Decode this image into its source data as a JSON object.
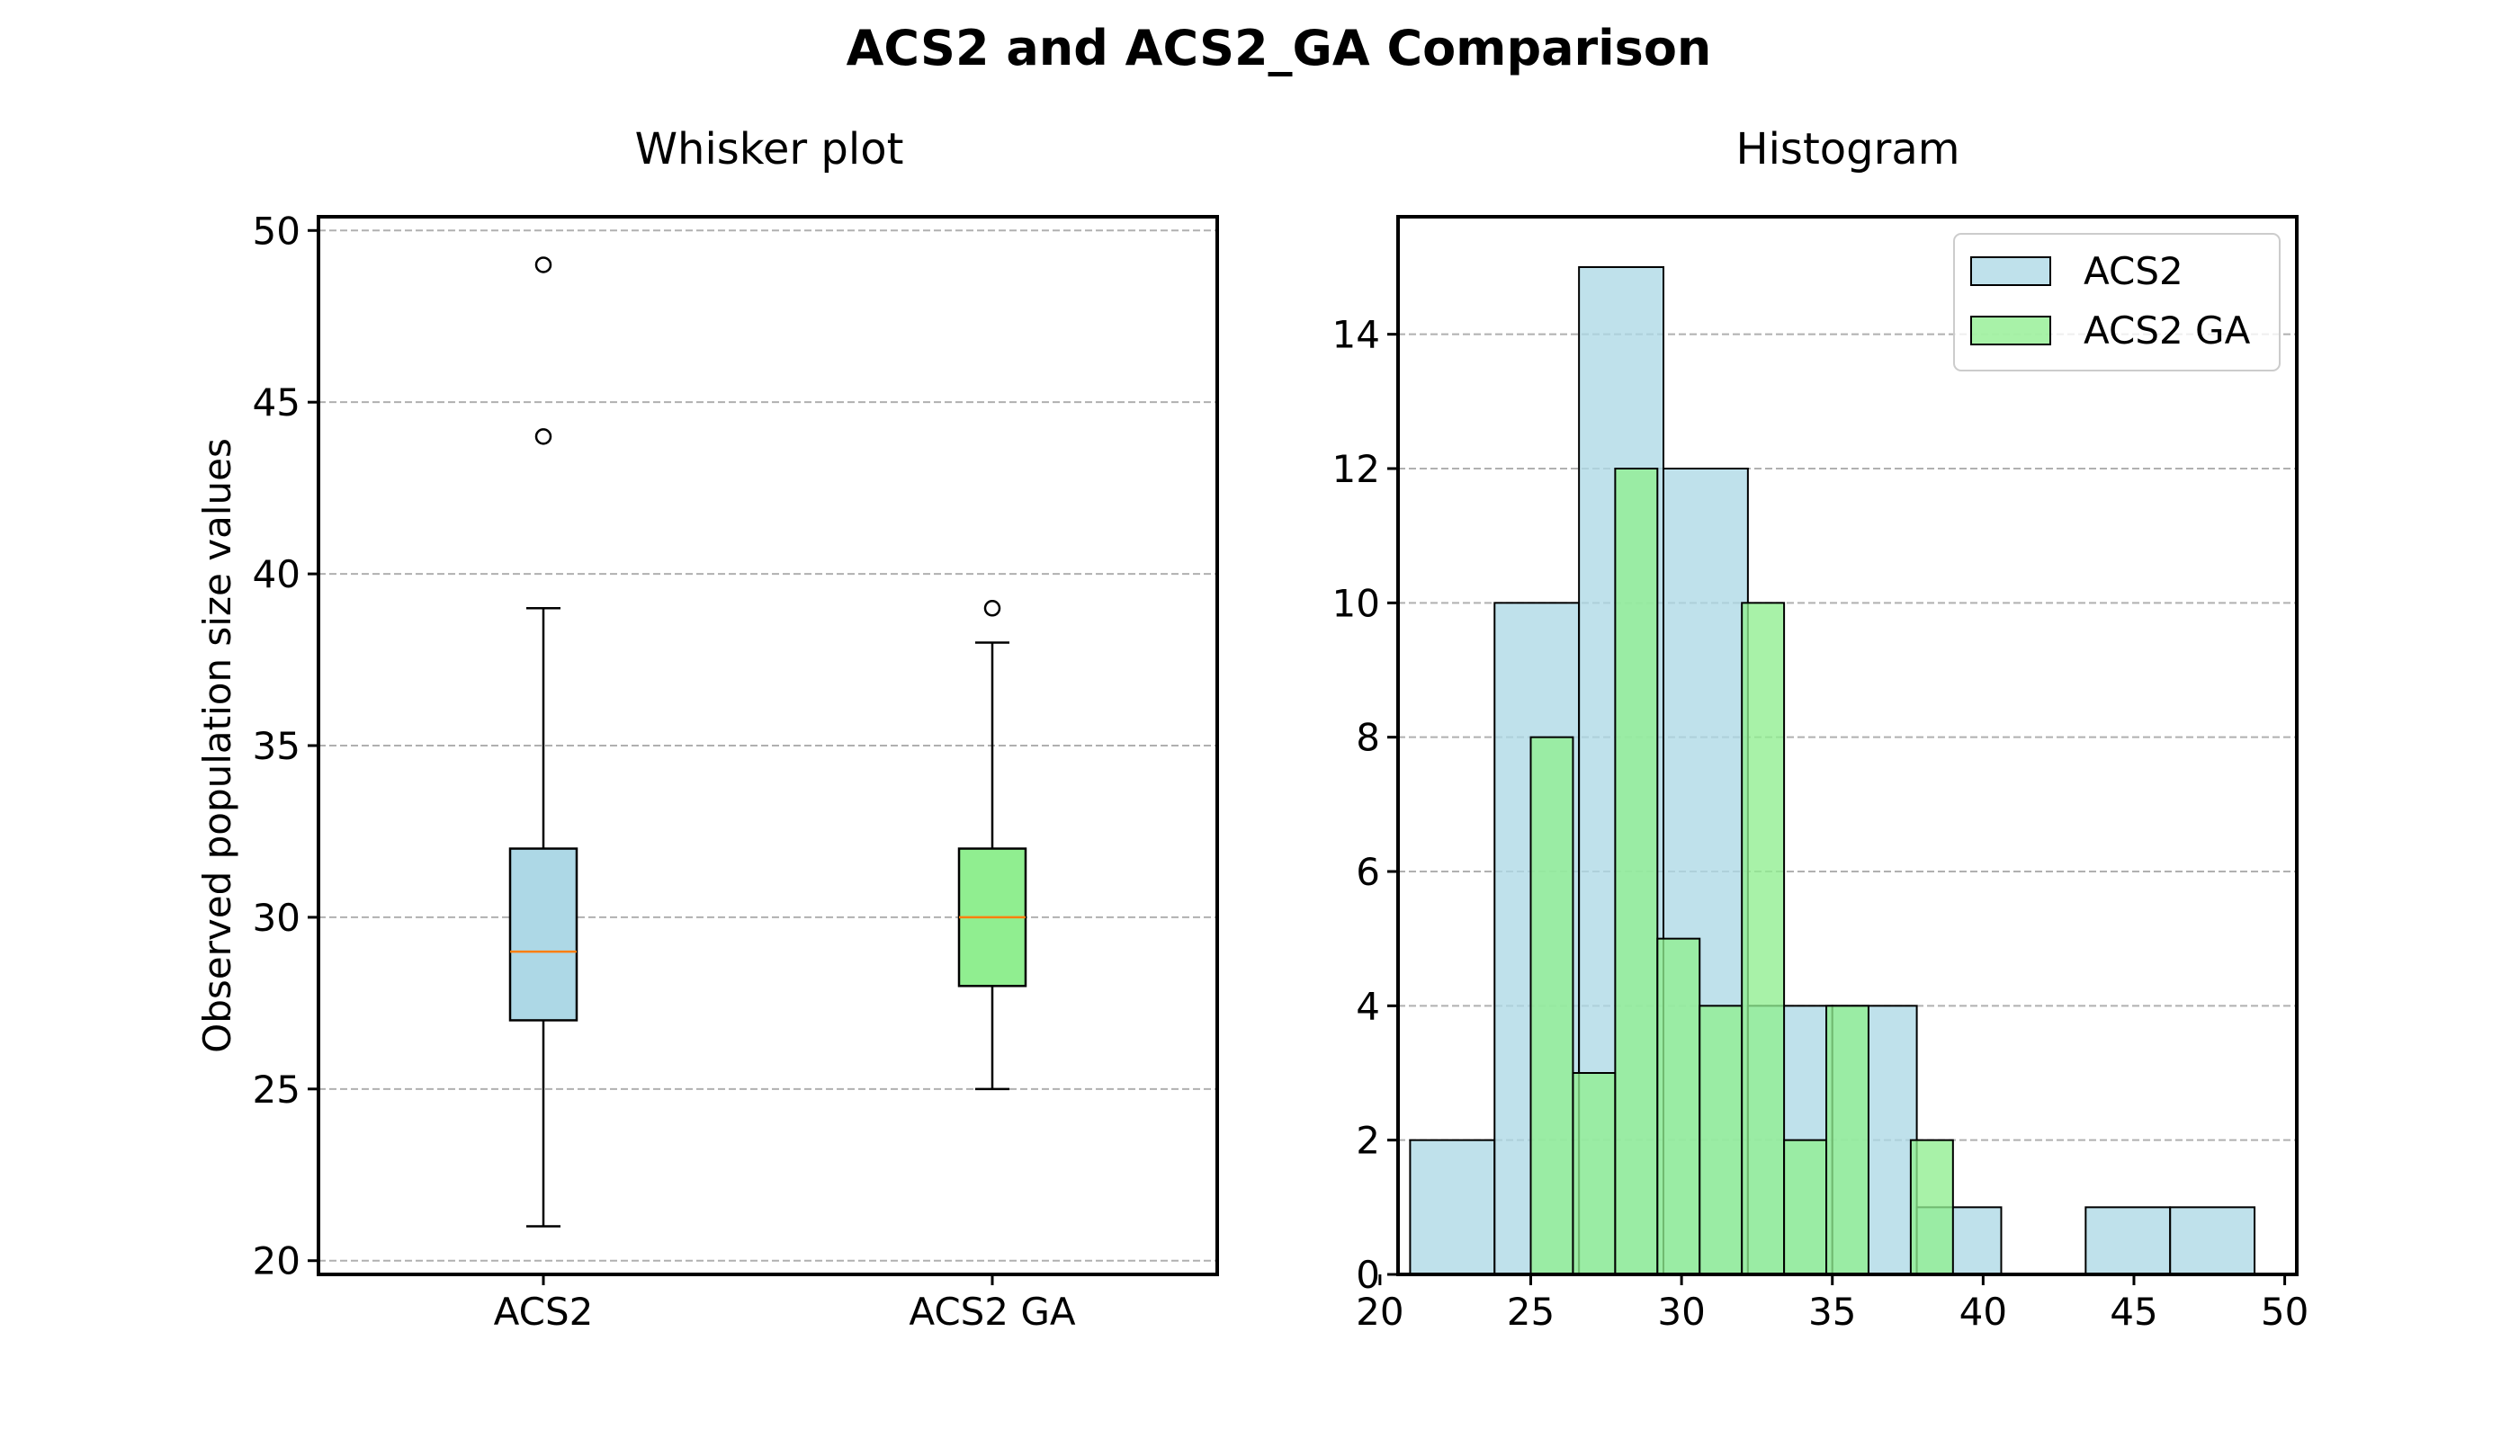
{
  "figure": {
    "title": "ACS2 and ACS2_GA Comparison"
  },
  "colors": {
    "acs2": "#add8e6",
    "acs2_ga": "#90ee90",
    "median": "#ff7f0e",
    "edge": "#000000",
    "grid": "#b0b0b0"
  },
  "chart_data": [
    {
      "type": "box",
      "title": "Whisker plot",
      "xlabel": "",
      "ylabel": "Observed population size values",
      "ylim": [
        19.6,
        50.4
      ],
      "yticks": [
        20,
        25,
        30,
        35,
        40,
        45,
        50
      ],
      "grid": "y",
      "categories": [
        "ACS2",
        "ACS2 GA"
      ],
      "series": [
        {
          "name": "ACS2",
          "whisker_low": 21,
          "q1": 27,
          "median": 29,
          "q3": 32,
          "whisker_high": 39,
          "outliers": [
            44,
            49
          ]
        },
        {
          "name": "ACS2 GA",
          "whisker_low": 25,
          "q1": 28,
          "median": 30,
          "q3": 32,
          "whisker_high": 38,
          "outliers": [
            39
          ]
        }
      ]
    },
    {
      "type": "histogram",
      "title": "Histogram",
      "xlabel": "",
      "ylabel": "",
      "xlim": [
        20.6,
        50.4
      ],
      "ylim": [
        0,
        15.75
      ],
      "xticks": [
        20,
        25,
        30,
        35,
        40,
        45,
        50
      ],
      "yticks": [
        0,
        2,
        4,
        6,
        8,
        10,
        12,
        14
      ],
      "grid": "y",
      "legend_position": "top-right",
      "series": [
        {
          "name": "ACS2",
          "bins": [
            [
              21.0,
              23.8,
              2
            ],
            [
              23.8,
              26.6,
              10
            ],
            [
              26.6,
              29.4,
              15
            ],
            [
              29.4,
              32.2,
              12
            ],
            [
              32.2,
              35.0,
              4
            ],
            [
              35.0,
              37.8,
              4
            ],
            [
              37.8,
              40.6,
              1
            ],
            [
              40.6,
              43.4,
              0
            ],
            [
              43.4,
              46.2,
              1
            ],
            [
              46.2,
              49.0,
              1
            ]
          ]
        },
        {
          "name": "ACS2 GA",
          "bins": [
            [
              25.0,
              26.4,
              8
            ],
            [
              26.4,
              27.8,
              3
            ],
            [
              27.8,
              29.2,
              12
            ],
            [
              29.2,
              30.6,
              5
            ],
            [
              30.6,
              32.0,
              4
            ],
            [
              32.0,
              33.4,
              10
            ],
            [
              33.4,
              34.8,
              2
            ],
            [
              34.8,
              36.2,
              4
            ],
            [
              36.2,
              37.6,
              0
            ],
            [
              37.6,
              39.0,
              2
            ]
          ]
        }
      ]
    }
  ]
}
